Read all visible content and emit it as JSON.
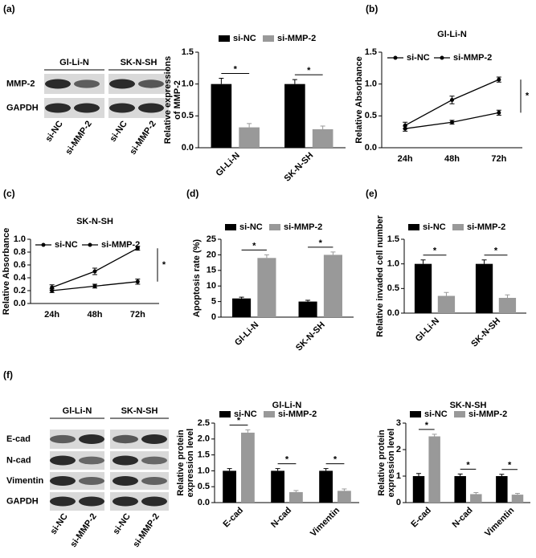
{
  "panel_labels": [
    "(a)",
    "(b)",
    "(c)",
    "(d)",
    "(e)",
    "(f)"
  ],
  "blots": [
    {
      "groups": [
        "Gl-Li-N",
        "SK-N-SH"
      ],
      "rows": [
        "MMP-2",
        "GAPDH"
      ],
      "lanes": [
        "si-NC",
        "si-MMP-2",
        "si-NC",
        "si-MMP-2"
      ]
    },
    {
      "groups": [
        "Gl-Li-N",
        "SK-N-SH"
      ],
      "rows": [
        "E-cad",
        "N-cad",
        "Vimentin",
        "GAPDH"
      ],
      "lanes": [
        "si-NC",
        "si-MMP-2",
        "si-NC",
        "si-MMP-2"
      ]
    }
  ],
  "chart_data": [
    {
      "type": "bar",
      "ylabel": [
        "Relative expressions",
        "of MMP-2"
      ],
      "categories": [
        "Gl-Li-N",
        "SK-N-SH"
      ],
      "series": [
        {
          "name": "si-NC",
          "color": "#000000",
          "values": [
            1.0,
            1.0
          ],
          "errors": [
            0.09,
            0.07
          ]
        },
        {
          "name": "si-MMP-2",
          "color": "#999999",
          "values": [
            0.32,
            0.29
          ],
          "errors": [
            0.06,
            0.05
          ]
        }
      ],
      "ylim": [
        0,
        1.5
      ],
      "yticks": [
        {
          "value": 0,
          "label": "0.0"
        },
        {
          "value": 0.5,
          "label": "0.5"
        },
        {
          "value": 1,
          "label": "1.0"
        },
        {
          "value": 1.5,
          "label": "1.5"
        }
      ],
      "annotations": [
        "*",
        "*"
      ]
    },
    {
      "type": "line",
      "title": "Gl-Li-N",
      "ylabel": [
        "Relative Absorbance"
      ],
      "categories": [
        "24h",
        "48h",
        "72h"
      ],
      "series": [
        {
          "name": "si-NC",
          "color": "#000000",
          "values": [
            0.35,
            0.75,
            1.07
          ],
          "errors": [
            0.05,
            0.06,
            0.04
          ]
        },
        {
          "name": "si-MMP-2",
          "color": "#000000",
          "values": [
            0.3,
            0.4,
            0.55
          ],
          "errors": [
            0.04,
            0.03,
            0.04
          ]
        }
      ],
      "ylim": [
        0,
        1.5
      ],
      "yticks": [
        {
          "value": 0,
          "label": "0.0"
        },
        {
          "value": 0.5,
          "label": "0.5"
        },
        {
          "value": 1,
          "label": "1.0"
        },
        {
          "value": 1.5,
          "label": "1.5"
        }
      ],
      "annotations": [
        "*"
      ]
    },
    {
      "type": "line",
      "title": "SK-N-SH",
      "ylabel": [
        "Relative Absorbance"
      ],
      "categories": [
        "24h",
        "48h",
        "72h"
      ],
      "series": [
        {
          "name": "si-NC",
          "color": "#000000",
          "values": [
            0.25,
            0.5,
            0.86
          ],
          "errors": [
            0.04,
            0.05,
            0.03
          ]
        },
        {
          "name": "si-MMP-2",
          "color": "#000000",
          "values": [
            0.2,
            0.27,
            0.34
          ],
          "errors": [
            0.03,
            0.03,
            0.04
          ]
        }
      ],
      "ylim": [
        0,
        1.0
      ],
      "yticks": [
        {
          "value": 0,
          "label": "0.0"
        },
        {
          "value": 0.2,
          "label": "0.2"
        },
        {
          "value": 0.4,
          "label": "0.4"
        },
        {
          "value": 0.6,
          "label": "0.6"
        },
        {
          "value": 0.8,
          "label": "0.8"
        },
        {
          "value": 1,
          "label": "1.0"
        }
      ],
      "annotations": [
        "*"
      ]
    },
    {
      "type": "bar",
      "ylabel": [
        "Apoptosis rate (%)"
      ],
      "categories": [
        "Gl-Li-N",
        "SK-N-SH"
      ],
      "series": [
        {
          "name": "si-NC",
          "color": "#000000",
          "values": [
            6,
            5
          ],
          "errors": [
            0.4,
            0.4
          ]
        },
        {
          "name": "si-MMP-2",
          "color": "#999999",
          "values": [
            19,
            20
          ],
          "errors": [
            1.0,
            0.9
          ]
        }
      ],
      "ylim": [
        0,
        25
      ],
      "yticks": [
        0,
        5,
        10,
        15,
        20,
        25
      ],
      "annotations": [
        "*",
        "*"
      ]
    },
    {
      "type": "bar",
      "ylabel": [
        "Relative invaded cell number"
      ],
      "categories": [
        "Gl-Li-N",
        "SK-N-SH"
      ],
      "series": [
        {
          "name": "si-NC",
          "color": "#000000",
          "values": [
            1.0,
            1.0
          ],
          "errors": [
            0.08,
            0.08
          ]
        },
        {
          "name": "si-MMP-2",
          "color": "#999999",
          "values": [
            0.35,
            0.31
          ],
          "errors": [
            0.07,
            0.06
          ]
        }
      ],
      "ylim": [
        0,
        1.5
      ],
      "yticks": [
        {
          "value": 0,
          "label": "0.0"
        },
        {
          "value": 0.5,
          "label": "0.5"
        },
        {
          "value": 1,
          "label": "1.0"
        },
        {
          "value": 1.5,
          "label": "1.5"
        }
      ],
      "annotations": [
        "*",
        "*"
      ]
    },
    {
      "type": "bar",
      "title": "Gl-Li-N",
      "ylabel": [
        "Relative protein",
        "expression level"
      ],
      "categories": [
        "E-cad",
        "N-cad",
        "Vimentin"
      ],
      "series": [
        {
          "name": "si-NC",
          "color": "#000000",
          "values": [
            1.0,
            1.0,
            1.0
          ],
          "errors": [
            0.07,
            0.07,
            0.07
          ]
        },
        {
          "name": "si-MMP-2",
          "color": "#999999",
          "values": [
            2.2,
            0.33,
            0.37
          ],
          "errors": [
            0.09,
            0.05,
            0.06
          ]
        }
      ],
      "ylim": [
        0,
        2.5
      ],
      "yticks": [
        {
          "value": 0,
          "label": "0.0"
        },
        {
          "value": 0.5,
          "label": "0.5"
        },
        {
          "value": 1,
          "label": "1.0"
        },
        {
          "value": 1.5,
          "label": "1.5"
        },
        {
          "value": 2,
          "label": "2.0"
        },
        {
          "value": 2.5,
          "label": "2.5"
        }
      ],
      "annotations": [
        "*",
        "*",
        "*"
      ]
    },
    {
      "type": "bar",
      "title": "SK-N-SH",
      "ylabel": [
        "Relative protein",
        "expression level"
      ],
      "categories": [
        "E-cad",
        "N-cad",
        "Vimentin"
      ],
      "series": [
        {
          "name": "si-NC",
          "color": "#000000",
          "values": [
            1.0,
            1.0,
            1.0
          ],
          "errors": [
            0.1,
            0.08,
            0.07
          ]
        },
        {
          "name": "si-MMP-2",
          "color": "#999999",
          "values": [
            2.5,
            0.32,
            0.3
          ],
          "errors": [
            0.08,
            0.06,
            0.05
          ]
        }
      ],
      "ylim": [
        0,
        3
      ],
      "yticks": [
        0,
        1,
        2,
        3
      ],
      "annotations": [
        "*",
        "*",
        "*"
      ]
    }
  ]
}
